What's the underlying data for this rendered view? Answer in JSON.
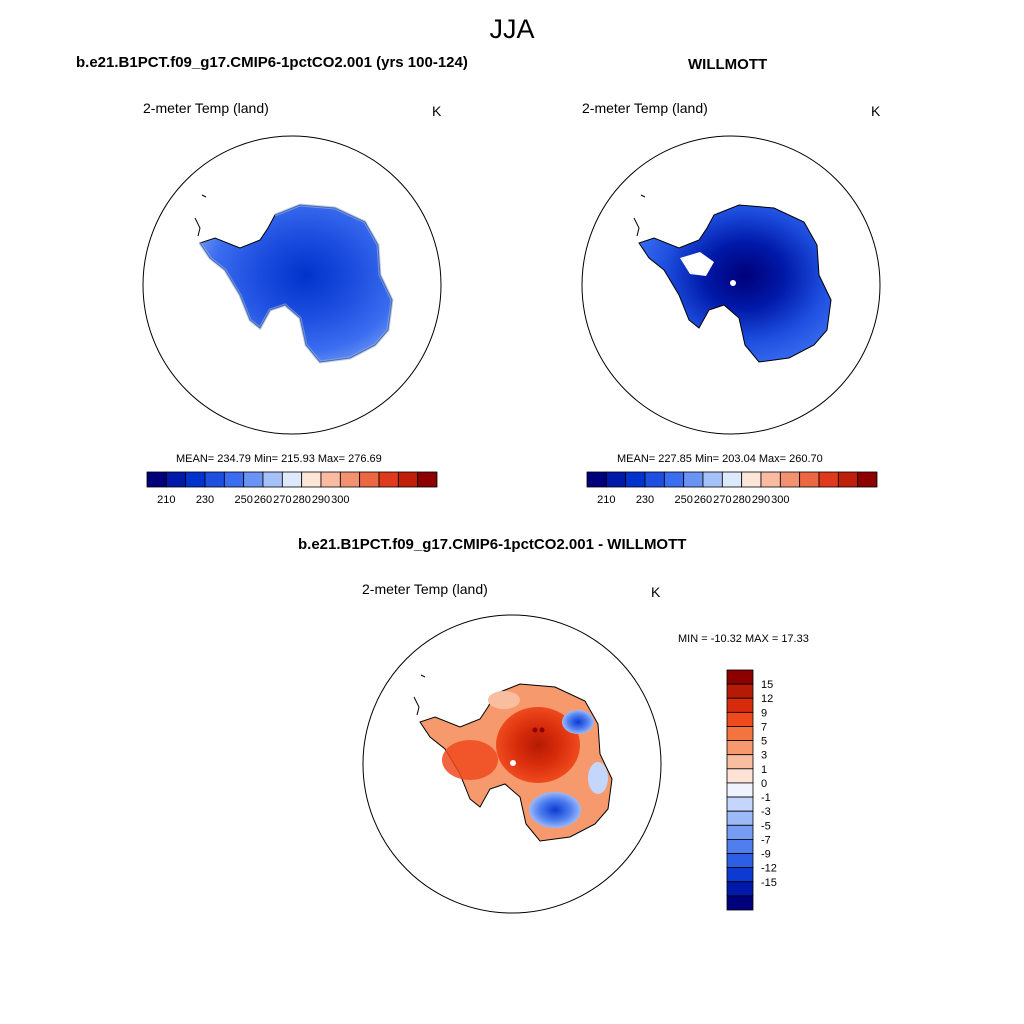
{
  "season_title": "JJA",
  "colors": {
    "abs_scale": [
      "#00007a",
      "#0019a8",
      "#0033cc",
      "#1e4fe0",
      "#3a6df0",
      "#6b93f3",
      "#a6c1f7",
      "#dde9fc",
      "#fde6d8",
      "#f9bca2",
      "#f39270",
      "#ec6843",
      "#e03a1c",
      "#c01f0a",
      "#8c0000"
    ],
    "diff_scale": [
      "#8c0000",
      "#b51a04",
      "#d72c0b",
      "#ef4a1e",
      "#f4743f",
      "#f6996c",
      "#f9bea0",
      "#fde3d5",
      "#eef3fe",
      "#c4d6fb",
      "#9cb9f8",
      "#769cf3",
      "#4f7fef",
      "#2c5fe6",
      "#0d3ad1",
      "#0019a8",
      "#00007a"
    ]
  },
  "panels": {
    "model": {
      "title": "b.e21.B1PCT.f09_g17.CMIP6-1pctCO2.001 (yrs 100-124)",
      "variable": "2-meter Temp (land)",
      "units": "K",
      "stats": "MEAN= 234.79  Min= 215.93  Max= 276.69"
    },
    "obs": {
      "title": "WILLMOTT",
      "variable": "2-meter Temp (land)",
      "units": "K",
      "stats": "MEAN= 227.85  Min= 203.04  Max= 260.70"
    },
    "diff": {
      "title": "b.e21.B1PCT.f09_g17.CMIP6-1pctCO2.001 - WILLMOTT",
      "variable": "2-meter Temp (land)",
      "units": "K",
      "stats": "MIN = -10.32 MAX =  17.33"
    }
  },
  "abs_colorbar_labels": [
    "210",
    "230",
    "250",
    "260",
    "270",
    "280",
    "290",
    "300"
  ],
  "diff_colorbar_labels": [
    "15",
    "12",
    "9",
    "7",
    "5",
    "3",
    "1",
    "0",
    "-1",
    "-3",
    "-5",
    "-7",
    "-9",
    "-12",
    "-15"
  ]
}
